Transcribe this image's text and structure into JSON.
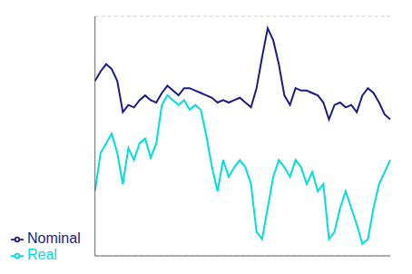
{
  "chart_data": {
    "type": "line",
    "series": [
      {
        "name": "Nominal",
        "color": "#1a1a8a",
        "values": [
          4.8,
          5.2,
          5.5,
          5.3,
          4.8,
          3.5,
          3.8,
          3.7,
          4.0,
          4.2,
          4.0,
          3.9,
          4.3,
          4.6,
          4.4,
          4.2,
          4.5,
          4.5,
          4.4,
          4.3,
          4.2,
          4.1,
          3.9,
          4.0,
          3.9,
          4.0,
          4.1,
          3.9,
          3.7,
          4.5,
          5.8,
          7.0,
          6.5,
          5.5,
          4.2,
          3.8,
          4.5,
          4.4,
          4.4,
          4.3,
          4.2,
          3.9,
          3.2,
          3.8,
          3.9,
          3.7,
          3.8,
          3.5,
          4.2,
          4.5,
          4.3,
          3.9,
          3.4,
          3.2
        ]
      },
      {
        "name": "Real",
        "color": "#00dddd",
        "values": [
          0.2,
          1.8,
          2.2,
          2.6,
          1.8,
          0.5,
          2.0,
          1.5,
          2.2,
          2.4,
          1.6,
          2.2,
          3.8,
          4.2,
          4.0,
          3.8,
          4.0,
          3.6,
          3.8,
          3.6,
          2.5,
          1.2,
          0.2,
          1.5,
          0.8,
          1.2,
          1.5,
          1.2,
          0.5,
          -1.5,
          -1.8,
          -0.5,
          0.8,
          1.5,
          1.2,
          0.8,
          1.5,
          1.2,
          0.5,
          1.0,
          0.2,
          0.5,
          -1.8,
          -1.5,
          -0.5,
          0.2,
          -0.5,
          -1.2,
          -2.0,
          -1.8,
          -0.5,
          0.5,
          1.0,
          1.5
        ]
      }
    ],
    "ylim": [
      -2.5,
      7.5
    ],
    "yticks": [
      0,
      2,
      4,
      6
    ],
    "grid": true,
    "legend": "lower left",
    "tick_labels": false
  }
}
